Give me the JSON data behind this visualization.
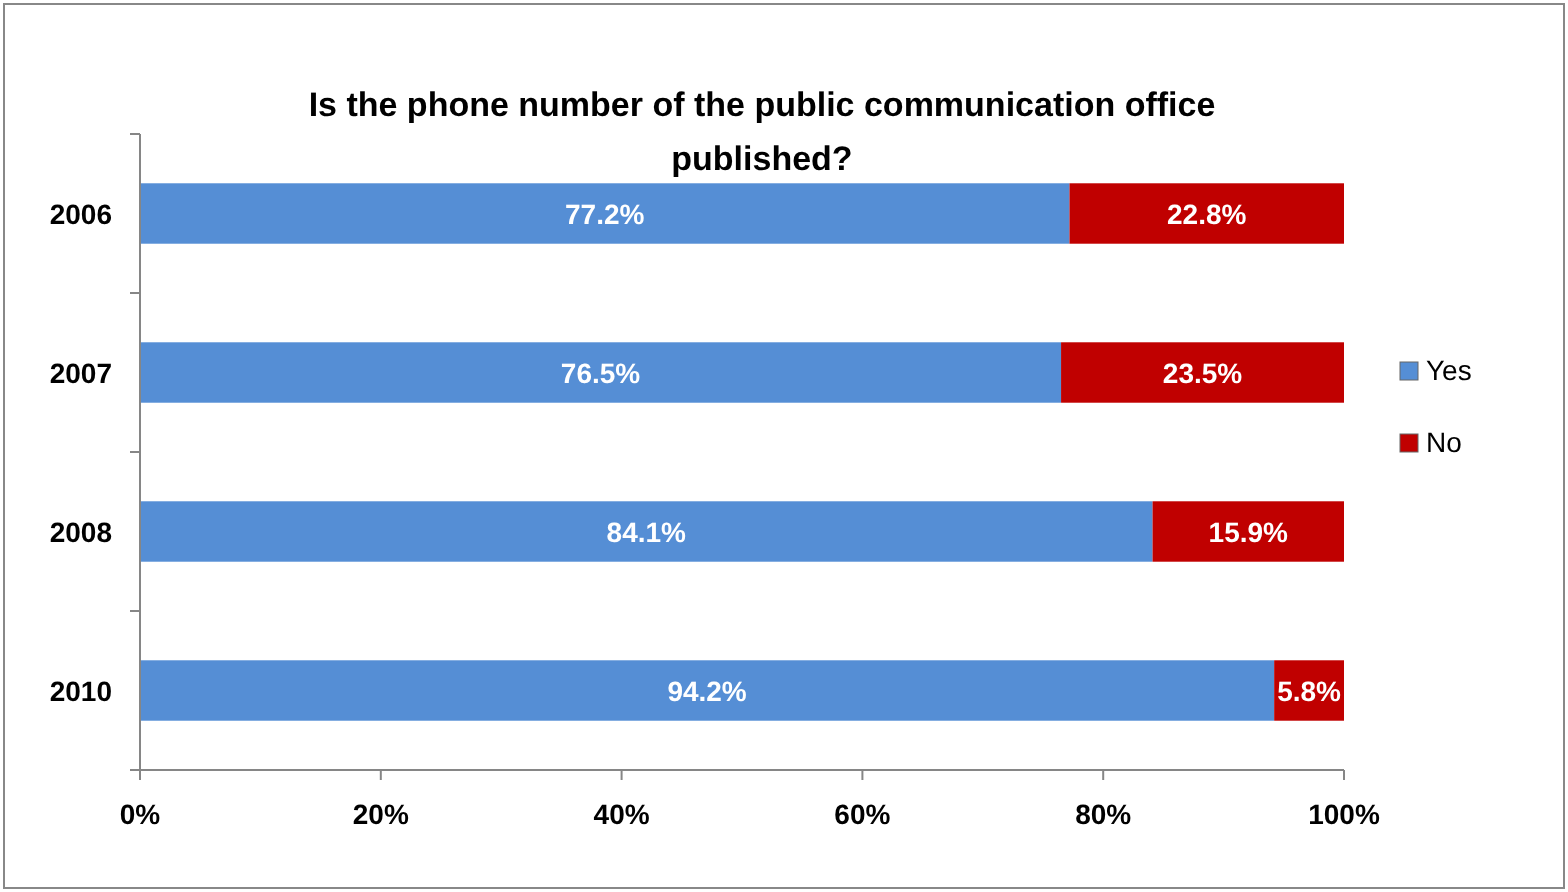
{
  "chart_data": {
    "type": "bar",
    "orientation": "horizontal",
    "stacked": true,
    "title": "Is the phone number of the public communication office published?",
    "categories": [
      "2006",
      "2007",
      "2008",
      "2010"
    ],
    "series": [
      {
        "name": "Yes",
        "color": "#558ed5",
        "values": [
          77.2,
          76.5,
          84.1,
          94.2
        ],
        "value_labels": [
          "77.2%",
          "76.5%",
          "84.1%",
          "94.2%"
        ]
      },
      {
        "name": "No",
        "color": "#c00000",
        "values": [
          22.8,
          23.5,
          15.9,
          5.8
        ],
        "value_labels": [
          "22.8%",
          "23.5%",
          "15.9%",
          "5.8%"
        ]
      }
    ],
    "xlim": [
      0,
      100
    ],
    "xticks": [
      {
        "value": 0,
        "label": "0%"
      },
      {
        "value": 20,
        "label": "20%"
      },
      {
        "value": 40,
        "label": "40%"
      },
      {
        "value": 60,
        "label": "60%"
      },
      {
        "value": 80,
        "label": "80%"
      },
      {
        "value": 100,
        "label": "100%"
      }
    ],
    "grid": false,
    "legend": "right"
  }
}
